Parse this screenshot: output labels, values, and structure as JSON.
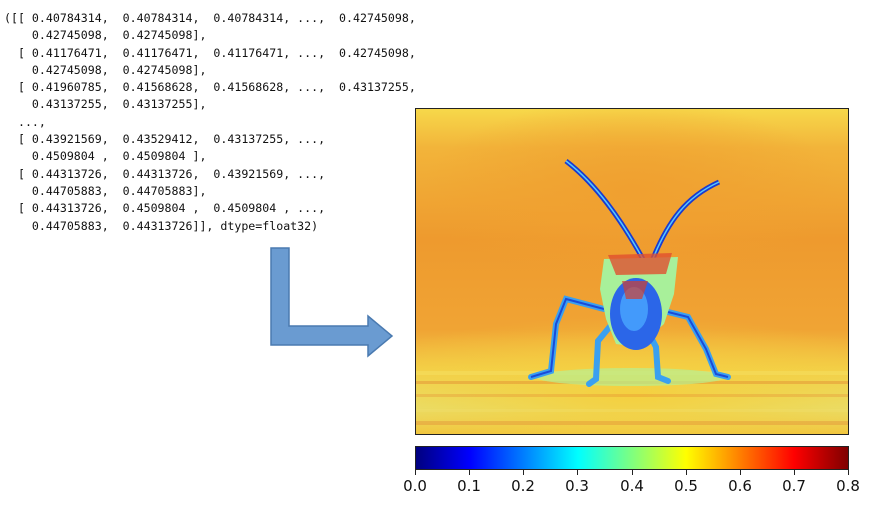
{
  "array_output": {
    "lines": [
      "([[ 0.40784314,  0.40784314,  0.40784314, ...,  0.42745098,",
      "    0.42745098,  0.42745098],",
      "  [ 0.41176471,  0.41176471,  0.41176471, ...,  0.42745098,",
      "    0.42745098,  0.42745098],",
      "  [ 0.41960785,  0.41568628,  0.41568628, ...,  0.43137255,",
      "    0.43137255,  0.43137255],",
      "  ...,",
      "  [ 0.43921569,  0.43529412,  0.43137255, ...,",
      "    0.4509804 ,  0.4509804 ],",
      "  [ 0.44313726,  0.44313726,  0.43921569, ...,",
      "    0.44705883,  0.44705883],",
      "  [ 0.44313726,  0.4509804 ,  0.4509804 , ...,",
      "    0.44705883,  0.44313726]], dtype=float32)"
    ]
  },
  "arrow": {
    "color": "#6a9bd1",
    "stroke": "#4a7ab0",
    "icon": "l-shaped-arrow-icon"
  },
  "heatmap": {
    "colormap": "jet",
    "subject": "insect"
  },
  "colorbar": {
    "colormap": "jet",
    "ticks": [
      "0.0",
      "0.1",
      "0.2",
      "0.3",
      "0.4",
      "0.5",
      "0.6",
      "0.7",
      "0.8"
    ],
    "range": [
      0.0,
      0.8
    ]
  }
}
